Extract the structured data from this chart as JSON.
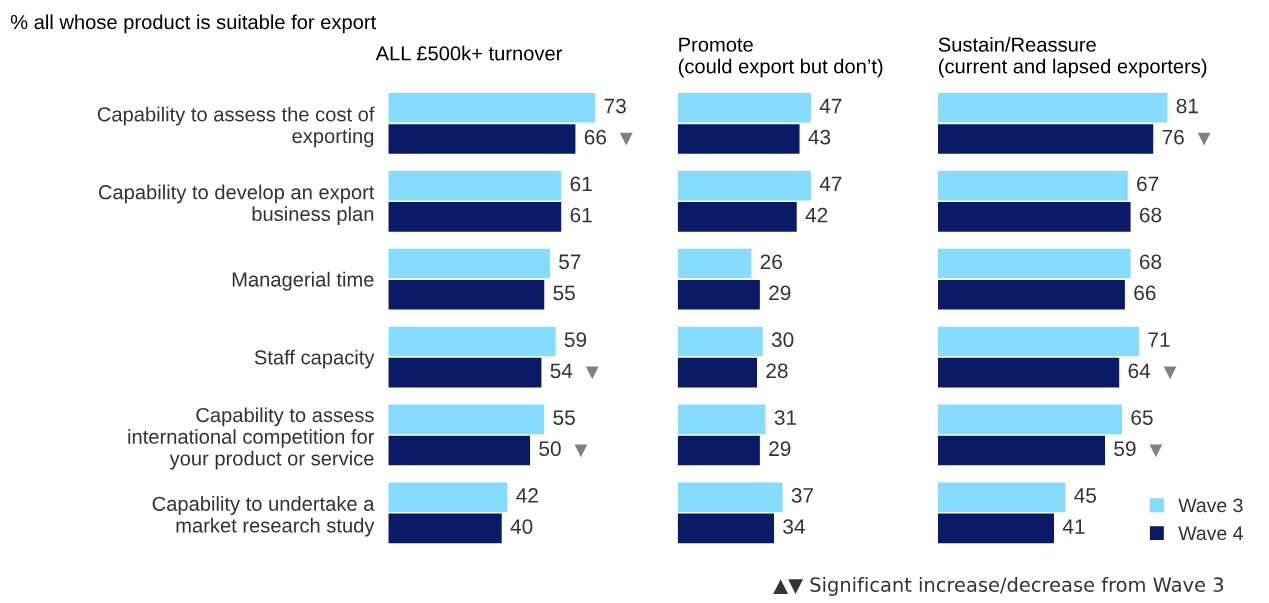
{
  "chart_data": [
    {
      "type": "bar",
      "orientation": "horizontal",
      "title": "% all whose product is suitable for export",
      "subtitle": "ALL £500k+ turnover",
      "categories": [
        "Capability to assess the cost of\nexporting",
        "Capability to develop an export\nbusiness plan",
        "Managerial time",
        "Staff capacity",
        "Capability to assess\ninternational competition for\nyour product or service",
        "Capability to undertake a\nmarket research study"
      ],
      "series": [
        {
          "color": "#86dcfc",
          "values": [
            73,
            61,
            57,
            59,
            55,
            42
          ]
        },
        {
          "color": "#0b1a66",
          "values": [
            66,
            61,
            55,
            54,
            50,
            40
          ]
        }
      ],
      "data_labels": true,
      "tick_labels": "y",
      "annotations": [
        {
          "text": "▼",
          "x": 66,
          "y": "Capability to assess the cost of\nexporting"
        },
        {
          "text": "▼",
          "x": 54,
          "y": "Staff capacity"
        },
        {
          "text": "▼",
          "x": 50,
          "y": "Capability to assess\ninternational competition for\nyour product or service"
        }
      ]
    },
    {
      "type": "bar",
      "orientation": "horizontal",
      "title": "Promote\n(could export but don’t)",
      "categories": [
        "Capability to assess the cost of\nexporting",
        "Capability to develop an export\nbusiness plan",
        "Managerial time",
        "Staff capacity",
        "Capability to assess\ninternational competition for\nyour product or service",
        "Capability to undertake a\nmarket research study"
      ],
      "series": [
        {
          "color": "#86dcfc",
          "values": [
            47,
            47,
            26,
            30,
            31,
            37
          ]
        },
        {
          "color": "#0b1a66",
          "values": [
            43,
            42,
            29,
            28,
            29,
            34
          ]
        }
      ],
      "data_labels": true,
      "tick_labels": false
    },
    {
      "type": "bar",
      "orientation": "horizontal",
      "title": "Sustain/Reassure\n(current and lapsed exporters)",
      "categories": [
        "Capability to assess the cost of\nexporting",
        "Capability to develop an export\nbusiness plan",
        "Managerial time",
        "Staff capacity",
        "Capability to assess\ninternational competition for\nyour product or service",
        "Capability to undertake a\nmarket research study"
      ],
      "series": [
        {
          "name": "Wave 3",
          "color": "#86dcfc",
          "values": [
            81,
            67,
            68,
            71,
            65,
            45
          ]
        },
        {
          "name": "Wave 4",
          "color": "#0b1a66",
          "values": [
            76,
            68,
            66,
            64,
            59,
            41
          ]
        }
      ],
      "data_labels": true,
      "tick_labels": false,
      "legend": "bottom right",
      "annotations": [
        {
          "text": "▼",
          "x": 76,
          "y": "Capability to assess the cost of\nexporting"
        },
        {
          "text": "▼",
          "x": 64,
          "y": "Staff capacity"
        },
        {
          "text": "▼",
          "x": 59,
          "y": "Capability to assess\ninternational competition for\nyour product or service"
        },
        "▲▼ Significant increase/decrease from Wave 3"
      ]
    }
  ]
}
